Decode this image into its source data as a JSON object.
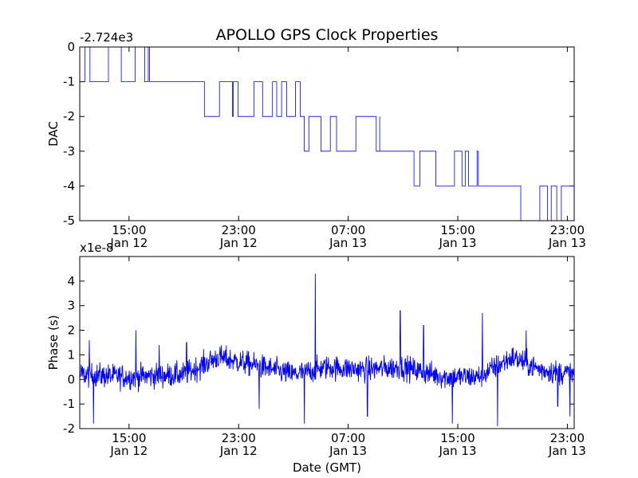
{
  "chart_data": [
    {
      "type": "line",
      "title": "APOLLO GPS Clock Properties",
      "ylabel": "DAC",
      "xlabel": "",
      "offset_label": "-2.724e3",
      "ylim": [
        -5,
        0
      ],
      "yticks": [
        "0",
        "-1",
        "-2",
        "-3",
        "-4",
        "-5"
      ],
      "xticks": [
        {
          "time": "15:00",
          "date": "Jan 12"
        },
        {
          "time": "23:00",
          "date": "Jan 12"
        },
        {
          "time": "07:00",
          "date": "Jan 13"
        },
        {
          "time": "15:00",
          "date": "Jan 13"
        },
        {
          "time": "23:00",
          "date": "Jan 13"
        }
      ],
      "xlim_hours": [
        11.4,
        47.5
      ],
      "xtick_hours": [
        15,
        23,
        31,
        39,
        47
      ],
      "line_color": "#0000ff",
      "series": [
        {
          "name": "DAC",
          "levels": [
            {
              "start": 11.4,
              "end": 16.5,
              "value": -1,
              "toggle_to": 0
            },
            {
              "start": 16.5,
              "end": 20.5,
              "value": -1
            },
            {
              "start": 20.5,
              "end": 27.5,
              "value": -2,
              "toggle_to": -1
            },
            {
              "start": 27.5,
              "end": 33.3,
              "value": -2,
              "toggle_to": -3
            },
            {
              "start": 33.3,
              "end": 35.8,
              "value": -3
            },
            {
              "start": 35.8,
              "end": 40.5,
              "value": -4,
              "toggle_to": -3
            },
            {
              "start": 40.5,
              "end": 43.6,
              "value": -4
            },
            {
              "start": 43.6,
              "end": 47.5,
              "value": -5,
              "toggle_to": -4
            }
          ]
        }
      ]
    },
    {
      "type": "line",
      "title": "",
      "ylabel": "Phase (s)",
      "xlabel": "Date (GMT)",
      "offset_label": "x1e-8",
      "ylim": [
        -2,
        5
      ],
      "yticks": [
        "4",
        "3",
        "2",
        "1",
        "0",
        "-1",
        "-2"
      ],
      "xticks": [
        {
          "time": "15:00",
          "date": "Jan 12"
        },
        {
          "time": "23:00",
          "date": "Jan 12"
        },
        {
          "time": "07:00",
          "date": "Jan 13"
        },
        {
          "time": "15:00",
          "date": "Jan 13"
        },
        {
          "time": "23:00",
          "date": "Jan 13"
        }
      ],
      "xlim_hours": [
        11.4,
        47.5
      ],
      "xtick_hours": [
        15,
        23,
        31,
        39,
        47
      ],
      "line_color": "#0000ff",
      "series": [
        {
          "name": "Phase",
          "baseline": [
            [
              11.4,
              0.2
            ],
            [
              15.0,
              0.1
            ],
            [
              19.0,
              0.2
            ],
            [
              21.5,
              0.9
            ],
            [
              24.0,
              0.6
            ],
            [
              27.0,
              0.2
            ],
            [
              29.5,
              0.5
            ],
            [
              32.0,
              0.4
            ],
            [
              35.0,
              0.5
            ],
            [
              38.0,
              0.1
            ],
            [
              40.5,
              0.1
            ],
            [
              43.0,
              0.9
            ],
            [
              45.0,
              0.4
            ],
            [
              47.5,
              0.2
            ]
          ],
          "spikes": [
            {
              "hour": 12.1,
              "value": 1.6
            },
            {
              "hour": 12.4,
              "value": -1.8
            },
            {
              "hour": 15.5,
              "value": 2.0
            },
            {
              "hour": 17.2,
              "value": 1.4
            },
            {
              "hour": 19.2,
              "value": 1.5
            },
            {
              "hour": 24.5,
              "value": -1.2
            },
            {
              "hour": 28.6,
              "value": 4.3
            },
            {
              "hour": 27.8,
              "value": -1.8
            },
            {
              "hour": 32.4,
              "value": -1.5
            },
            {
              "hour": 34.8,
              "value": 2.8
            },
            {
              "hour": 36.5,
              "value": 2.2
            },
            {
              "hour": 38.6,
              "value": -1.8
            },
            {
              "hour": 40.8,
              "value": 2.7
            },
            {
              "hour": 41.9,
              "value": -1.9
            },
            {
              "hour": 44.0,
              "value": 2.0
            },
            {
              "hour": 46.3,
              "value": -1.1
            },
            {
              "hour": 47.2,
              "value": -1.5
            }
          ]
        }
      ]
    }
  ]
}
